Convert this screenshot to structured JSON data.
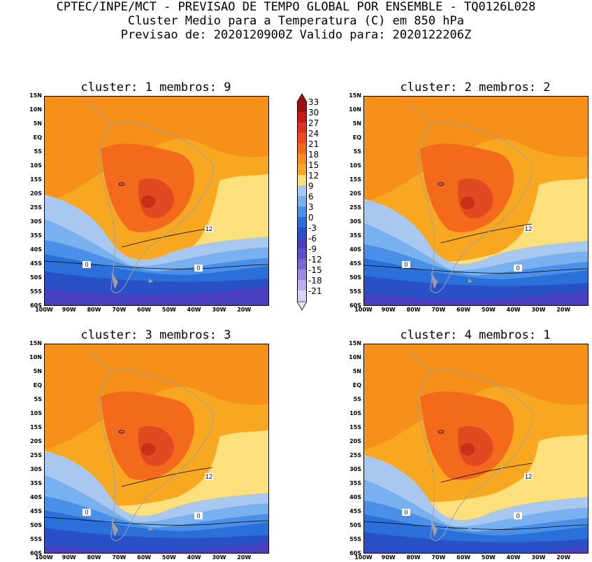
{
  "header": {
    "line1": "CPTEC/INPE/MCT - PREVISAO DE TEMPO GLOBAL POR ENSEMBLE - TQ0126L028",
    "line2": "Cluster Medio para a Temperatura (C) em 850 hPa",
    "line3": "Previsao de: 2020120900Z   Valido para: 2020122206Z"
  },
  "panels": [
    {
      "title": "cluster: 1   membros: 9",
      "labels": [
        "12",
        "0",
        "0"
      ]
    },
    {
      "title": "cluster: 2   membros: 2",
      "labels": [
        "12",
        "0",
        "0"
      ]
    },
    {
      "title": "cluster: 3   membros: 3",
      "labels": [
        "12",
        "0",
        "0"
      ]
    },
    {
      "title": "cluster: 4   membros: 1",
      "labels": [
        "12",
        "0",
        "0"
      ]
    }
  ],
  "axes": {
    "lat_labels": [
      "15N",
      "10N",
      "5N",
      "EQ",
      "5S",
      "10S",
      "15S",
      "20S",
      "25S",
      "30S",
      "35S",
      "40S",
      "45S",
      "50S",
      "55S",
      "60S"
    ],
    "lon_labels": [
      "100W",
      "90W",
      "80W",
      "70W",
      "60W",
      "50W",
      "40W",
      "30W",
      "20W"
    ]
  },
  "colorbar": {
    "labels": [
      "33",
      "30",
      "27",
      "24",
      "21",
      "18",
      "15",
      "12",
      "9",
      "6",
      "3",
      "0",
      "-3",
      "-6",
      "-9",
      "-12",
      "-15",
      "-18",
      "-21"
    ],
    "colors": [
      "#a01010",
      "#c81818",
      "#e03020",
      "#f04a20",
      "#f36a1c",
      "#f59018",
      "#f8a820",
      "#fbe07c",
      "#a8c8f0",
      "#78b0f0",
      "#4a90e8",
      "#2a70d8",
      "#2a50c8",
      "#4840c0",
      "#6050c8",
      "#7a6ad0",
      "#9a8ae0",
      "#beb0f0",
      "#dcd0f8"
    ]
  }
}
